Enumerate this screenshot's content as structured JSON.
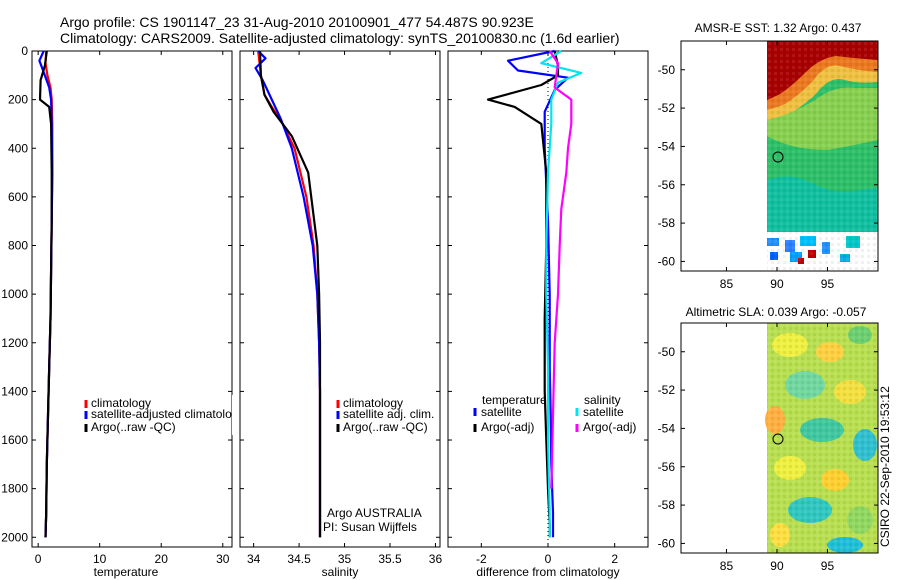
{
  "figure": {
    "title_line1": "Argo profile: CS 1901147_23 31-Aug-2010 20100901_477 54.487S 90.923E",
    "title_line2": "Climatology: CARS2009. Satellite-adjusted climatology: synTS_20100830.nc (1.6d earlier)",
    "credit": "CSIRO 22-Sep-2010 19:53:12"
  },
  "chart_data": [
    {
      "id": "temperature",
      "type": "line",
      "xlabel": "temperature",
      "ylabel": "",
      "xlim": [
        -1,
        31.5
      ],
      "ylim": [
        2040,
        0
      ],
      "xticks": [
        0,
        10,
        20,
        30
      ],
      "yticks": [
        0,
        200,
        400,
        600,
        800,
        1000,
        1200,
        1400,
        1600,
        1800,
        2000
      ],
      "legend": [
        "climatology",
        "satellite-adjusted climatology",
        "Argo(..raw -QC)"
      ],
      "series": [
        {
          "name": "climatology",
          "color": "#ff0000",
          "x": [
            1.3,
            1.2,
            1.5,
            2.0,
            2.2,
            2.3,
            2.3,
            2.2,
            2.1,
            2.0,
            1.8,
            1.6,
            1.4,
            1.3,
            1.2
          ],
          "y": [
            0,
            50,
            100,
            150,
            200,
            300,
            500,
            700,
            900,
            1100,
            1300,
            1500,
            1700,
            1900,
            2000
          ]
        },
        {
          "name": "satellite-adjusted climatology",
          "color": "#0000ff",
          "x": [
            0.9,
            0.2,
            0.8,
            1.8,
            2.1,
            2.2,
            2.3,
            2.2,
            2.1,
            2.0,
            1.8,
            1.6,
            1.4,
            1.3,
            1.2
          ],
          "y": [
            0,
            40,
            80,
            150,
            200,
            300,
            500,
            700,
            900,
            1100,
            1300,
            1500,
            1700,
            1900,
            2000
          ]
        },
        {
          "name": "Argo(..raw -QC)",
          "color": "#000000",
          "x": [
            1.4,
            1.1,
            0.4,
            0.3,
            1.8,
            2.1,
            2.2,
            2.2,
            2.1,
            2.0,
            1.8,
            1.6,
            1.4,
            1.3,
            1.2
          ],
          "y": [
            0,
            60,
            120,
            200,
            230,
            300,
            500,
            700,
            900,
            1100,
            1300,
            1500,
            1700,
            1900,
            2000
          ]
        }
      ]
    },
    {
      "id": "salinity",
      "type": "line",
      "xlabel": "salinity",
      "xlim": [
        33.85,
        36.05
      ],
      "ylim": [
        2040,
        0
      ],
      "xticks": [
        34,
        34.5,
        35,
        35.5,
        36
      ],
      "yticks": [
        0,
        200,
        400,
        600,
        800,
        1000,
        1200,
        1400,
        1600,
        1800,
        2000
      ],
      "legend": [
        "climatology",
        "satellite adj. clim.",
        "Argo(..raw -QC)"
      ],
      "annotation": [
        "Argo AUSTRALIA",
        "PI: Susan Wijffels"
      ],
      "series": [
        {
          "name": "climatology",
          "color": "#ff0000",
          "x": [
            34.05,
            34.08,
            34.12,
            34.2,
            34.32,
            34.45,
            34.58,
            34.66,
            34.7,
            34.72,
            34.73,
            34.73,
            34.73,
            34.73
          ],
          "y": [
            0,
            100,
            180,
            230,
            300,
            400,
            600,
            800,
            1000,
            1200,
            1400,
            1600,
            1800,
            2000
          ]
        },
        {
          "name": "satellite adj. clim.",
          "color": "#0000ff",
          "x": [
            34.05,
            34.13,
            34.02,
            34.1,
            34.2,
            34.3,
            34.42,
            34.55,
            34.65,
            34.7,
            34.72,
            34.73,
            34.73,
            34.73,
            34.73
          ],
          "y": [
            0,
            30,
            70,
            120,
            200,
            280,
            400,
            600,
            800,
            1000,
            1200,
            1400,
            1600,
            1800,
            2000
          ]
        },
        {
          "name": "Argo(..raw -QC)",
          "color": "#000000",
          "x": [
            34.07,
            34.08,
            34.12,
            34.22,
            34.42,
            34.6,
            34.7,
            34.72,
            34.73,
            34.73,
            34.73,
            34.73,
            34.73
          ],
          "y": [
            0,
            100,
            180,
            250,
            350,
            500,
            800,
            1000,
            1200,
            1400,
            1600,
            1800,
            2000
          ]
        }
      ]
    },
    {
      "id": "difference",
      "type": "line",
      "xlabel": "difference from climatology",
      "xlim": [
        -3,
        3
      ],
      "ylim": [
        2040,
        0
      ],
      "xticks": [
        -2,
        0,
        2
      ],
      "yticks": [
        0,
        200,
        400,
        600,
        800,
        1000,
        1200,
        1400,
        1600,
        1800,
        2000
      ],
      "legend_titles": [
        "temperature",
        "salinity"
      ],
      "legend": [
        "satellite",
        "Argo(-adj)",
        "satellite",
        "Argo(-adj)"
      ],
      "series": [
        {
          "name": "temperature satellite",
          "color": "#0000ff",
          "x": [
            0.2,
            -1.2,
            -0.9,
            0.6,
            0.2,
            -0.1,
            -0.1,
            0.0,
            0.05,
            0.05,
            0.08,
            0.1,
            0.15,
            0.15
          ],
          "y": [
            0,
            40,
            80,
            110,
            160,
            250,
            400,
            700,
            1000,
            1300,
            1500,
            1700,
            1900,
            2000
          ]
        },
        {
          "name": "temperature Argo(-adj)",
          "color": "#000000",
          "x": [
            0.2,
            0.3,
            0.3,
            -0.2,
            -1.8,
            -1.0,
            -0.2,
            -0.05,
            -0.05,
            -0.1,
            -0.1,
            -0.05,
            0.0,
            0.05,
            0.05
          ],
          "y": [
            0,
            60,
            100,
            140,
            200,
            230,
            300,
            500,
            800,
            1100,
            1400,
            1600,
            1800,
            1950,
            2000
          ]
        },
        {
          "name": "salinity satellite",
          "color": "#00e5ee",
          "x": [
            0.4,
            -0.2,
            1.0,
            0.3,
            0.1,
            0.1,
            0.0,
            -0.05,
            -0.05,
            0.0,
            0.0,
            0.05,
            0.05
          ],
          "y": [
            0,
            50,
            90,
            130,
            200,
            300,
            500,
            800,
            1000,
            1300,
            1600,
            1900,
            2000
          ]
        },
        {
          "name": "salinity Argo(-adj)",
          "color": "#ff00ff",
          "x": [
            0.05,
            0.3,
            0.2,
            0.7,
            0.7,
            0.6,
            0.55,
            0.4,
            0.35,
            0.3,
            0.2,
            0.15,
            0.1
          ],
          "y": [
            0,
            50,
            150,
            200,
            300,
            400,
            500,
            650,
            800,
            1000,
            1200,
            1500,
            1800
          ]
        }
      ]
    },
    {
      "id": "amsre_sst",
      "type": "heatmap",
      "title": "AMSR-E SST: 1.32 Argo: 0.437",
      "xticks": [
        85,
        90,
        95
      ],
      "yticks": [
        -50,
        -52,
        -54,
        -56,
        -58,
        -60
      ],
      "xlim": [
        80.5,
        100
      ],
      "ylim": [
        -60.5,
        -48.5
      ],
      "argo_position": [
        90.923,
        -54.487
      ]
    },
    {
      "id": "altimetric_sla",
      "type": "heatmap",
      "title": "Altimetric SLA: 0.039 Argo: -0.057",
      "xticks": [
        85,
        90,
        95
      ],
      "yticks": [
        -50,
        -52,
        -54,
        -56,
        -58,
        -60
      ],
      "xlim": [
        80.5,
        100
      ],
      "ylim": [
        -60.5,
        -48.5
      ],
      "argo_position": [
        90.923,
        -54.487
      ]
    }
  ]
}
